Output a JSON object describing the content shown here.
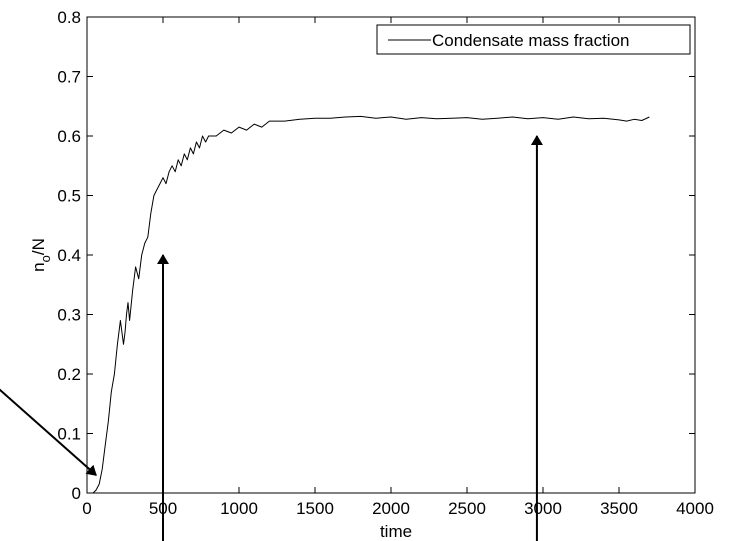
{
  "chart_data": {
    "type": "line",
    "title": "",
    "xlabel": "time",
    "ylabel_main": "n",
    "ylabel_sub": "o",
    "ylabel_tail": "/N",
    "xlim": [
      0,
      4000
    ],
    "ylim": [
      0,
      0.8
    ],
    "x_ticks": [
      0,
      500,
      1000,
      1500,
      2000,
      2500,
      3000,
      3500,
      4000
    ],
    "y_ticks": [
      0,
      0.1,
      0.2,
      0.3,
      0.4,
      0.5,
      0.6,
      0.7,
      0.8
    ],
    "x_tick_labels": [
      "0",
      "500",
      "1000",
      "1500",
      "2000",
      "2500",
      "3000",
      "3500",
      "4000"
    ],
    "y_tick_labels": [
      "0",
      "0.1",
      "0.2",
      "0.3",
      "0.4",
      "0.5",
      "0.6",
      "0.7",
      "0.8"
    ],
    "grid": false,
    "legend_position": "top-right",
    "series": [
      {
        "name": "Condensate mass fraction",
        "color": "#000000",
        "x": [
          0,
          40,
          60,
          80,
          100,
          120,
          140,
          160,
          180,
          200,
          220,
          240,
          250,
          260,
          270,
          280,
          300,
          320,
          340,
          360,
          380,
          400,
          420,
          440,
          460,
          480,
          500,
          520,
          540,
          560,
          580,
          600,
          620,
          640,
          660,
          680,
          700,
          720,
          740,
          760,
          780,
          800,
          850,
          900,
          950,
          1000,
          1050,
          1100,
          1150,
          1200,
          1300,
          1400,
          1500,
          1600,
          1700,
          1800,
          1900,
          2000,
          2100,
          2200,
          2300,
          2400,
          2500,
          2600,
          2700,
          2800,
          2900,
          3000,
          3100,
          3200,
          3300,
          3400,
          3500,
          3550,
          3600,
          3650,
          3700
        ],
        "y": [
          0,
          0,
          0.005,
          0.015,
          0.04,
          0.08,
          0.12,
          0.17,
          0.2,
          0.25,
          0.29,
          0.25,
          0.27,
          0.3,
          0.32,
          0.29,
          0.34,
          0.38,
          0.36,
          0.4,
          0.42,
          0.43,
          0.47,
          0.5,
          0.51,
          0.52,
          0.53,
          0.52,
          0.54,
          0.55,
          0.54,
          0.56,
          0.55,
          0.57,
          0.56,
          0.58,
          0.57,
          0.59,
          0.58,
          0.6,
          0.59,
          0.6,
          0.6,
          0.61,
          0.605,
          0.615,
          0.61,
          0.62,
          0.615,
          0.625,
          0.625,
          0.628,
          0.63,
          0.63,
          0.632,
          0.633,
          0.63,
          0.632,
          0.628,
          0.631,
          0.629,
          0.63,
          0.631,
          0.628,
          0.63,
          0.632,
          0.629,
          0.631,
          0.628,
          0.632,
          0.629,
          0.63,
          0.627,
          0.625,
          0.628,
          0.626,
          0.632
        ]
      }
    ],
    "annotation_arrows": [
      {
        "from": [
          -1000,
          0.27
        ],
        "to": [
          60,
          0.03
        ]
      },
      {
        "from": [
          500,
          -0.09
        ],
        "to": [
          500,
          0.4
        ]
      },
      {
        "from": [
          2960,
          -0.09
        ],
        "to": [
          2960,
          0.6
        ]
      }
    ]
  }
}
